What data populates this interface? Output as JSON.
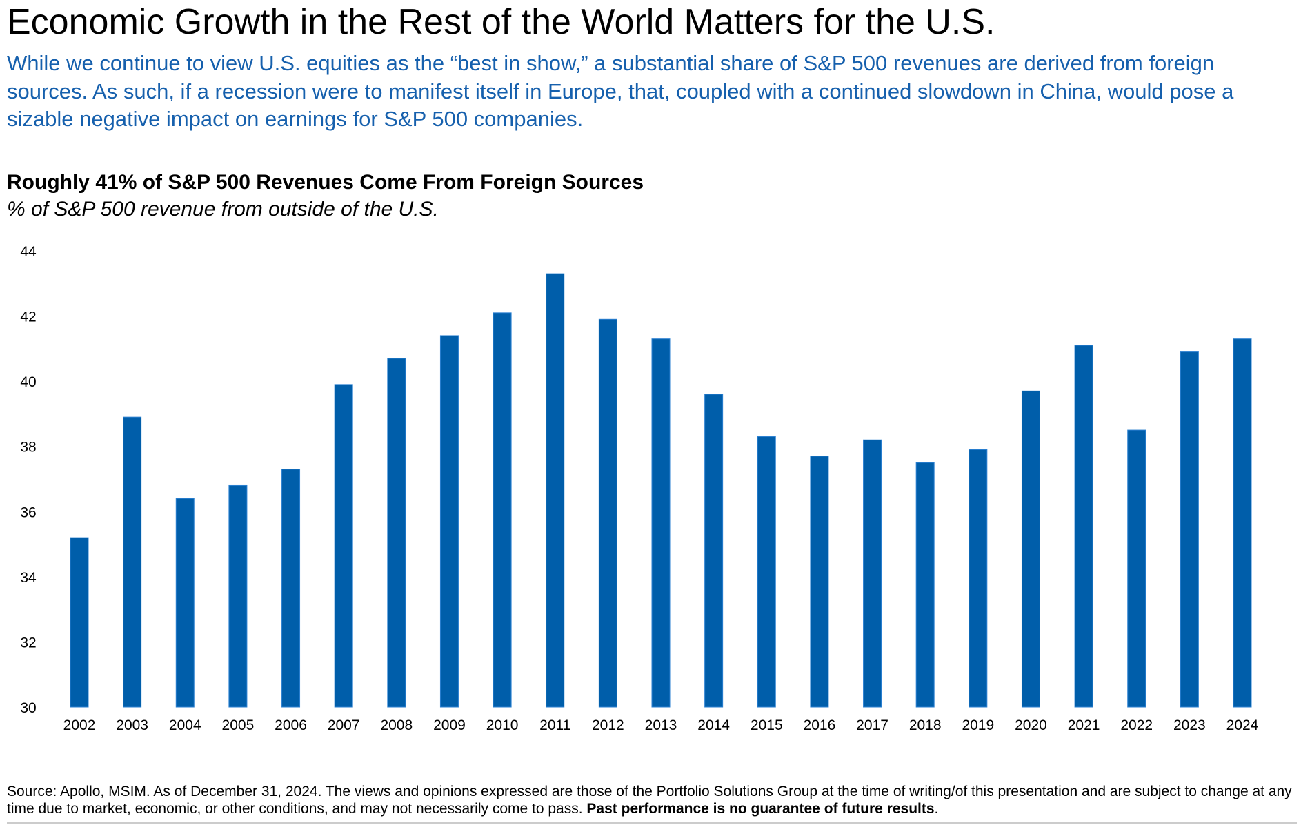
{
  "header": {
    "title": "Economic Growth in the Rest of the World Matters for the U.S.",
    "lead": "While we continue to view U.S. equities as the “best in show,” a substantial share of S&P 500 revenues are derived from foreign sources. As such, if a recession were to manifest itself in Europe, that, coupled with a continued slowdown in China, would pose a sizable negative impact on earnings for S&P 500 companies."
  },
  "chart_data": {
    "type": "bar",
    "title": "Roughly 41% of S&P 500 Revenues Come From Foreign Sources",
    "subtitle": "% of S&P 500 revenue from outside of the U.S.",
    "xlabel": "",
    "ylabel": "",
    "ylim": [
      30,
      44
    ],
    "yticks": [
      "30",
      "32",
      "34",
      "36",
      "38",
      "40",
      "42",
      "44"
    ],
    "grid": false,
    "bar_color": "#005EAA",
    "categories": [
      "2002",
      "2003",
      "2004",
      "2005",
      "2006",
      "2007",
      "2008",
      "2009",
      "2010",
      "2011",
      "2012",
      "2013",
      "2014",
      "2015",
      "2016",
      "2017",
      "2018",
      "2019",
      "2020",
      "2021",
      "2022",
      "2023",
      "2024"
    ],
    "values": [
      35.2,
      38.9,
      36.4,
      36.8,
      37.3,
      39.9,
      40.7,
      41.4,
      42.1,
      43.3,
      41.9,
      41.3,
      39.6,
      38.3,
      37.7,
      38.2,
      37.5,
      37.9,
      39.7,
      41.1,
      38.5,
      40.9,
      41.3
    ]
  },
  "footer": {
    "source": "Source: Apollo, MSIM. As of December 31, 2024. The views and opinions expressed are those of the Portfolio Solutions Group at the time of writing/of this presentation and are subject to change at any time due to market, economic, or other conditions, and may not necessarily come to pass.",
    "disclaimer": "Past performance is no guarantee of future results",
    "period": "."
  }
}
